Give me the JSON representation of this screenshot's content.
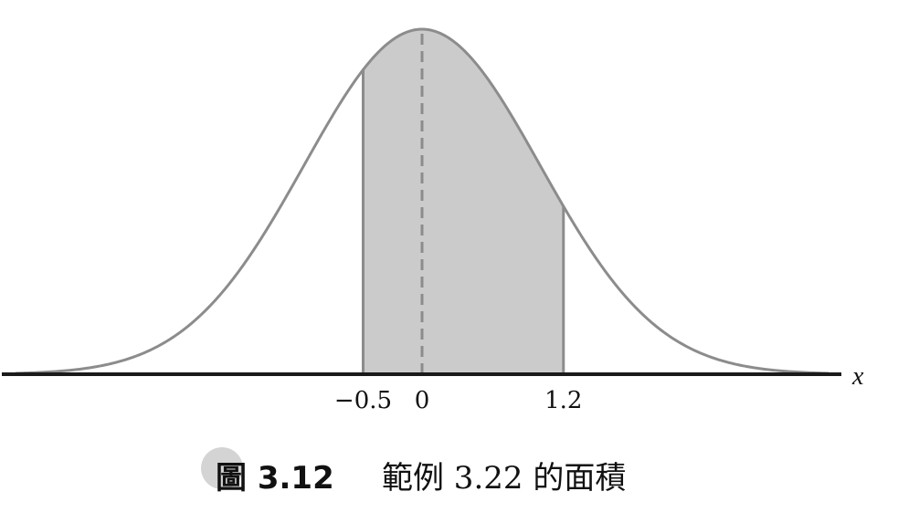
{
  "chart_data": {
    "type": "area",
    "distribution": "standard normal density",
    "mean": 0,
    "std": 1,
    "xlim": [
      -3.45,
      3.45
    ],
    "shaded_interval": [
      -0.5,
      1.2
    ],
    "mean_line": 0,
    "tick_values": [
      -0.5,
      0,
      1.2
    ],
    "tick_labels": [
      "−0.5",
      "0",
      "1.2"
    ],
    "xlabel": "x",
    "ylabel": "",
    "title": "",
    "grid": false,
    "legend": "none",
    "colors": {
      "curve": "#8c8c8c",
      "fill": "#cbcbcb",
      "axis": "#1a1a1a",
      "mean_line": "#8c8c8c"
    }
  },
  "caption": {
    "number": "圖 3.12",
    "text": "範例 3.22 的面積"
  }
}
